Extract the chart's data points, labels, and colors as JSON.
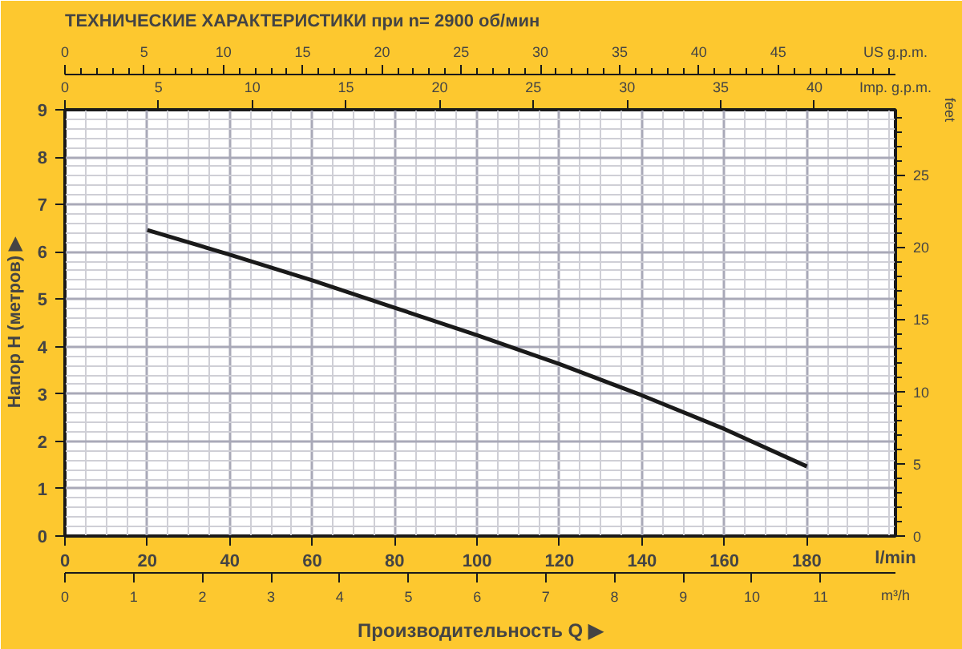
{
  "chart_data": {
    "type": "line",
    "title": "ТЕХНИЧЕСКИЕ ХАРАКТЕРИСТИКИ при n= 2900 об/мин",
    "xlabel": "Производительность Q ▶",
    "ylabel": "Напор H (метров) ▶",
    "y2label": "feet",
    "x2label": "US g.p.m.",
    "annotations": [
      "l/min",
      "Imp. g.p.m.",
      "m³/h",
      "0",
      "5",
      "10",
      "15",
      "20",
      "25",
      "30",
      "35",
      "40",
      "0",
      "1",
      "2",
      "3",
      "4",
      "5",
      "6",
      "7",
      "8",
      "9",
      "10",
      "11"
    ],
    "x": [
      20,
      40,
      60,
      80,
      100,
      120,
      140,
      160,
      180
    ],
    "series": [
      {
        "color": "#1a1a1a",
        "values": [
          6.46,
          5.94,
          5.4,
          4.82,
          4.24,
          3.63,
          2.97,
          2.26,
          1.47
        ]
      }
    ],
    "xlim": [
      0,
      201.5
    ],
    "xticks": [
      0,
      20,
      40,
      60,
      80,
      100,
      120,
      140,
      160,
      180
    ],
    "ylim": [
      0,
      9
    ],
    "yticks": [
      0,
      1,
      2,
      3,
      4,
      5,
      6,
      7,
      8,
      9
    ],
    "y2lim": [
      0,
      29.5
    ],
    "y2ticks": [
      0,
      5,
      10,
      15,
      20,
      25
    ],
    "x2lim": [
      0,
      52.4
    ],
    "x2ticks": [
      0,
      5,
      10,
      15,
      20,
      25,
      30,
      35,
      40,
      45
    ],
    "grid": true,
    "marker": "none",
    "line_style": "solid"
  }
}
